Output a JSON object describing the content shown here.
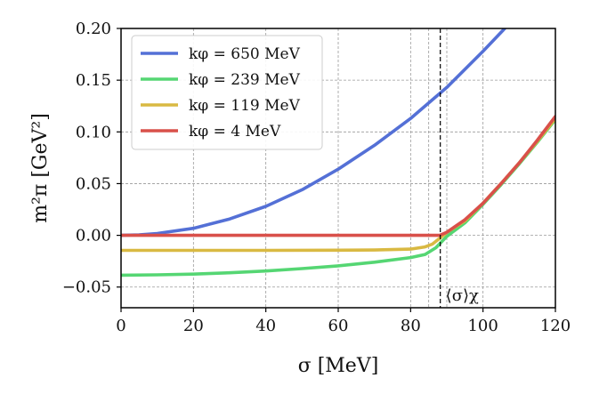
{
  "chart_data": {
    "type": "line",
    "xlabel": "σ [MeV]",
    "ylabel": "m²π [GeV²]",
    "xlim": [
      0,
      120
    ],
    "ylim": [
      -0.07,
      0.2
    ],
    "x_ticks": [
      "0",
      "20",
      "40",
      "60",
      "80",
      "100",
      "120"
    ],
    "y_ticks": [
      "−0.05",
      "0.00",
      "0.05",
      "0.10",
      "0.15",
      "0.20"
    ],
    "x_tick_values": [
      0,
      20,
      40,
      60,
      80,
      100,
      120
    ],
    "y_tick_values": [
      -0.05,
      0,
      0.05,
      0.1,
      0.15,
      0.2
    ],
    "grid": true,
    "grid_x_values": [
      0,
      20,
      40,
      60,
      80,
      85,
      90,
      100,
      120
    ],
    "legend_position": "top-left",
    "annotation": {
      "label": "⟨σ⟩χ",
      "x": 88.2
    },
    "series": [
      {
        "name": "kφ = 650 MeV",
        "color": "#5470d6",
        "x": [
          0,
          5,
          10,
          20,
          30,
          40,
          50,
          60,
          70,
          80,
          90,
          100,
          106
        ],
        "y": [
          0.0,
          0.0005,
          0.0018,
          0.0068,
          0.0158,
          0.028,
          0.044,
          0.064,
          0.087,
          0.113,
          0.143,
          0.178,
          0.2
        ]
      },
      {
        "name": "kφ = 239 MeV",
        "color": "#55d673",
        "x": [
          0,
          10,
          20,
          30,
          40,
          50,
          60,
          70,
          80,
          84,
          87,
          90,
          95,
          100,
          105,
          110,
          115,
          120
        ],
        "y": [
          -0.0385,
          -0.0382,
          -0.0375,
          -0.0362,
          -0.0345,
          -0.0322,
          -0.0295,
          -0.026,
          -0.0215,
          -0.0185,
          -0.012,
          -0.001,
          0.012,
          0.03,
          0.049,
          0.069,
          0.09,
          0.112
        ]
      },
      {
        "name": "kφ = 119 MeV",
        "color": "#d9b942",
        "x": [
          0,
          20,
          40,
          60,
          70,
          80,
          84,
          86,
          88,
          90,
          95,
          100,
          105,
          110,
          115,
          120
        ],
        "y": [
          -0.0145,
          -0.0145,
          -0.0145,
          -0.0144,
          -0.0142,
          -0.0133,
          -0.0112,
          -0.0085,
          -0.003,
          0.003,
          0.014,
          0.031,
          0.05,
          0.07,
          0.091,
          0.113
        ]
      },
      {
        "name": "kφ = 4 MeV",
        "color": "#d9504a",
        "x": [
          0,
          20,
          40,
          60,
          80,
          88,
          90,
          95,
          100,
          105,
          110,
          115,
          120
        ],
        "y": [
          0.0,
          0.0,
          0.0,
          0.0,
          0.0,
          0.0,
          0.003,
          0.015,
          0.031,
          0.05,
          0.07,
          0.092,
          0.115
        ]
      }
    ]
  }
}
